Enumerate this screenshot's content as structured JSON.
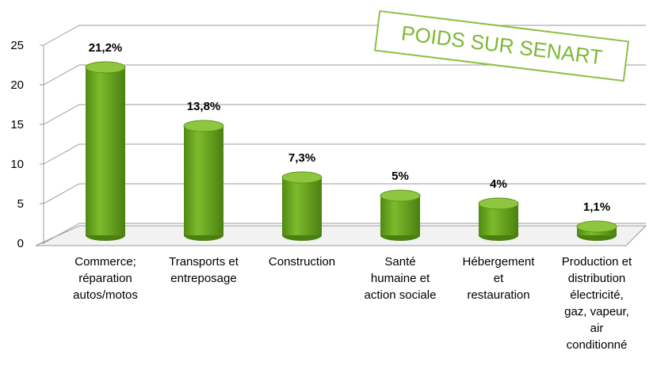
{
  "chart_data": {
    "type": "bar3d",
    "annotation": "POIDS SUR SENART",
    "categories": [
      "Commerce;\nréparation\nautos/motos",
      "Transports et\nentreposage",
      "Construction",
      "Santé\nhumaine et\naction sociale",
      "Hébergement\net\nrestauration",
      "Production et\ndistribution\nélectricité,\ngaz, vapeur,\nair\nconditionné"
    ],
    "values": [
      21.2,
      13.8,
      7.3,
      5,
      4,
      1.1
    ],
    "value_labels": [
      "21,2%",
      "13,8%",
      "7,3%",
      "5%",
      "4%",
      "1,1%"
    ],
    "color": "#6aa51f",
    "ylim": [
      0,
      25
    ],
    "yticks": [
      0,
      5,
      10,
      15,
      20,
      25
    ],
    "grid": true
  }
}
